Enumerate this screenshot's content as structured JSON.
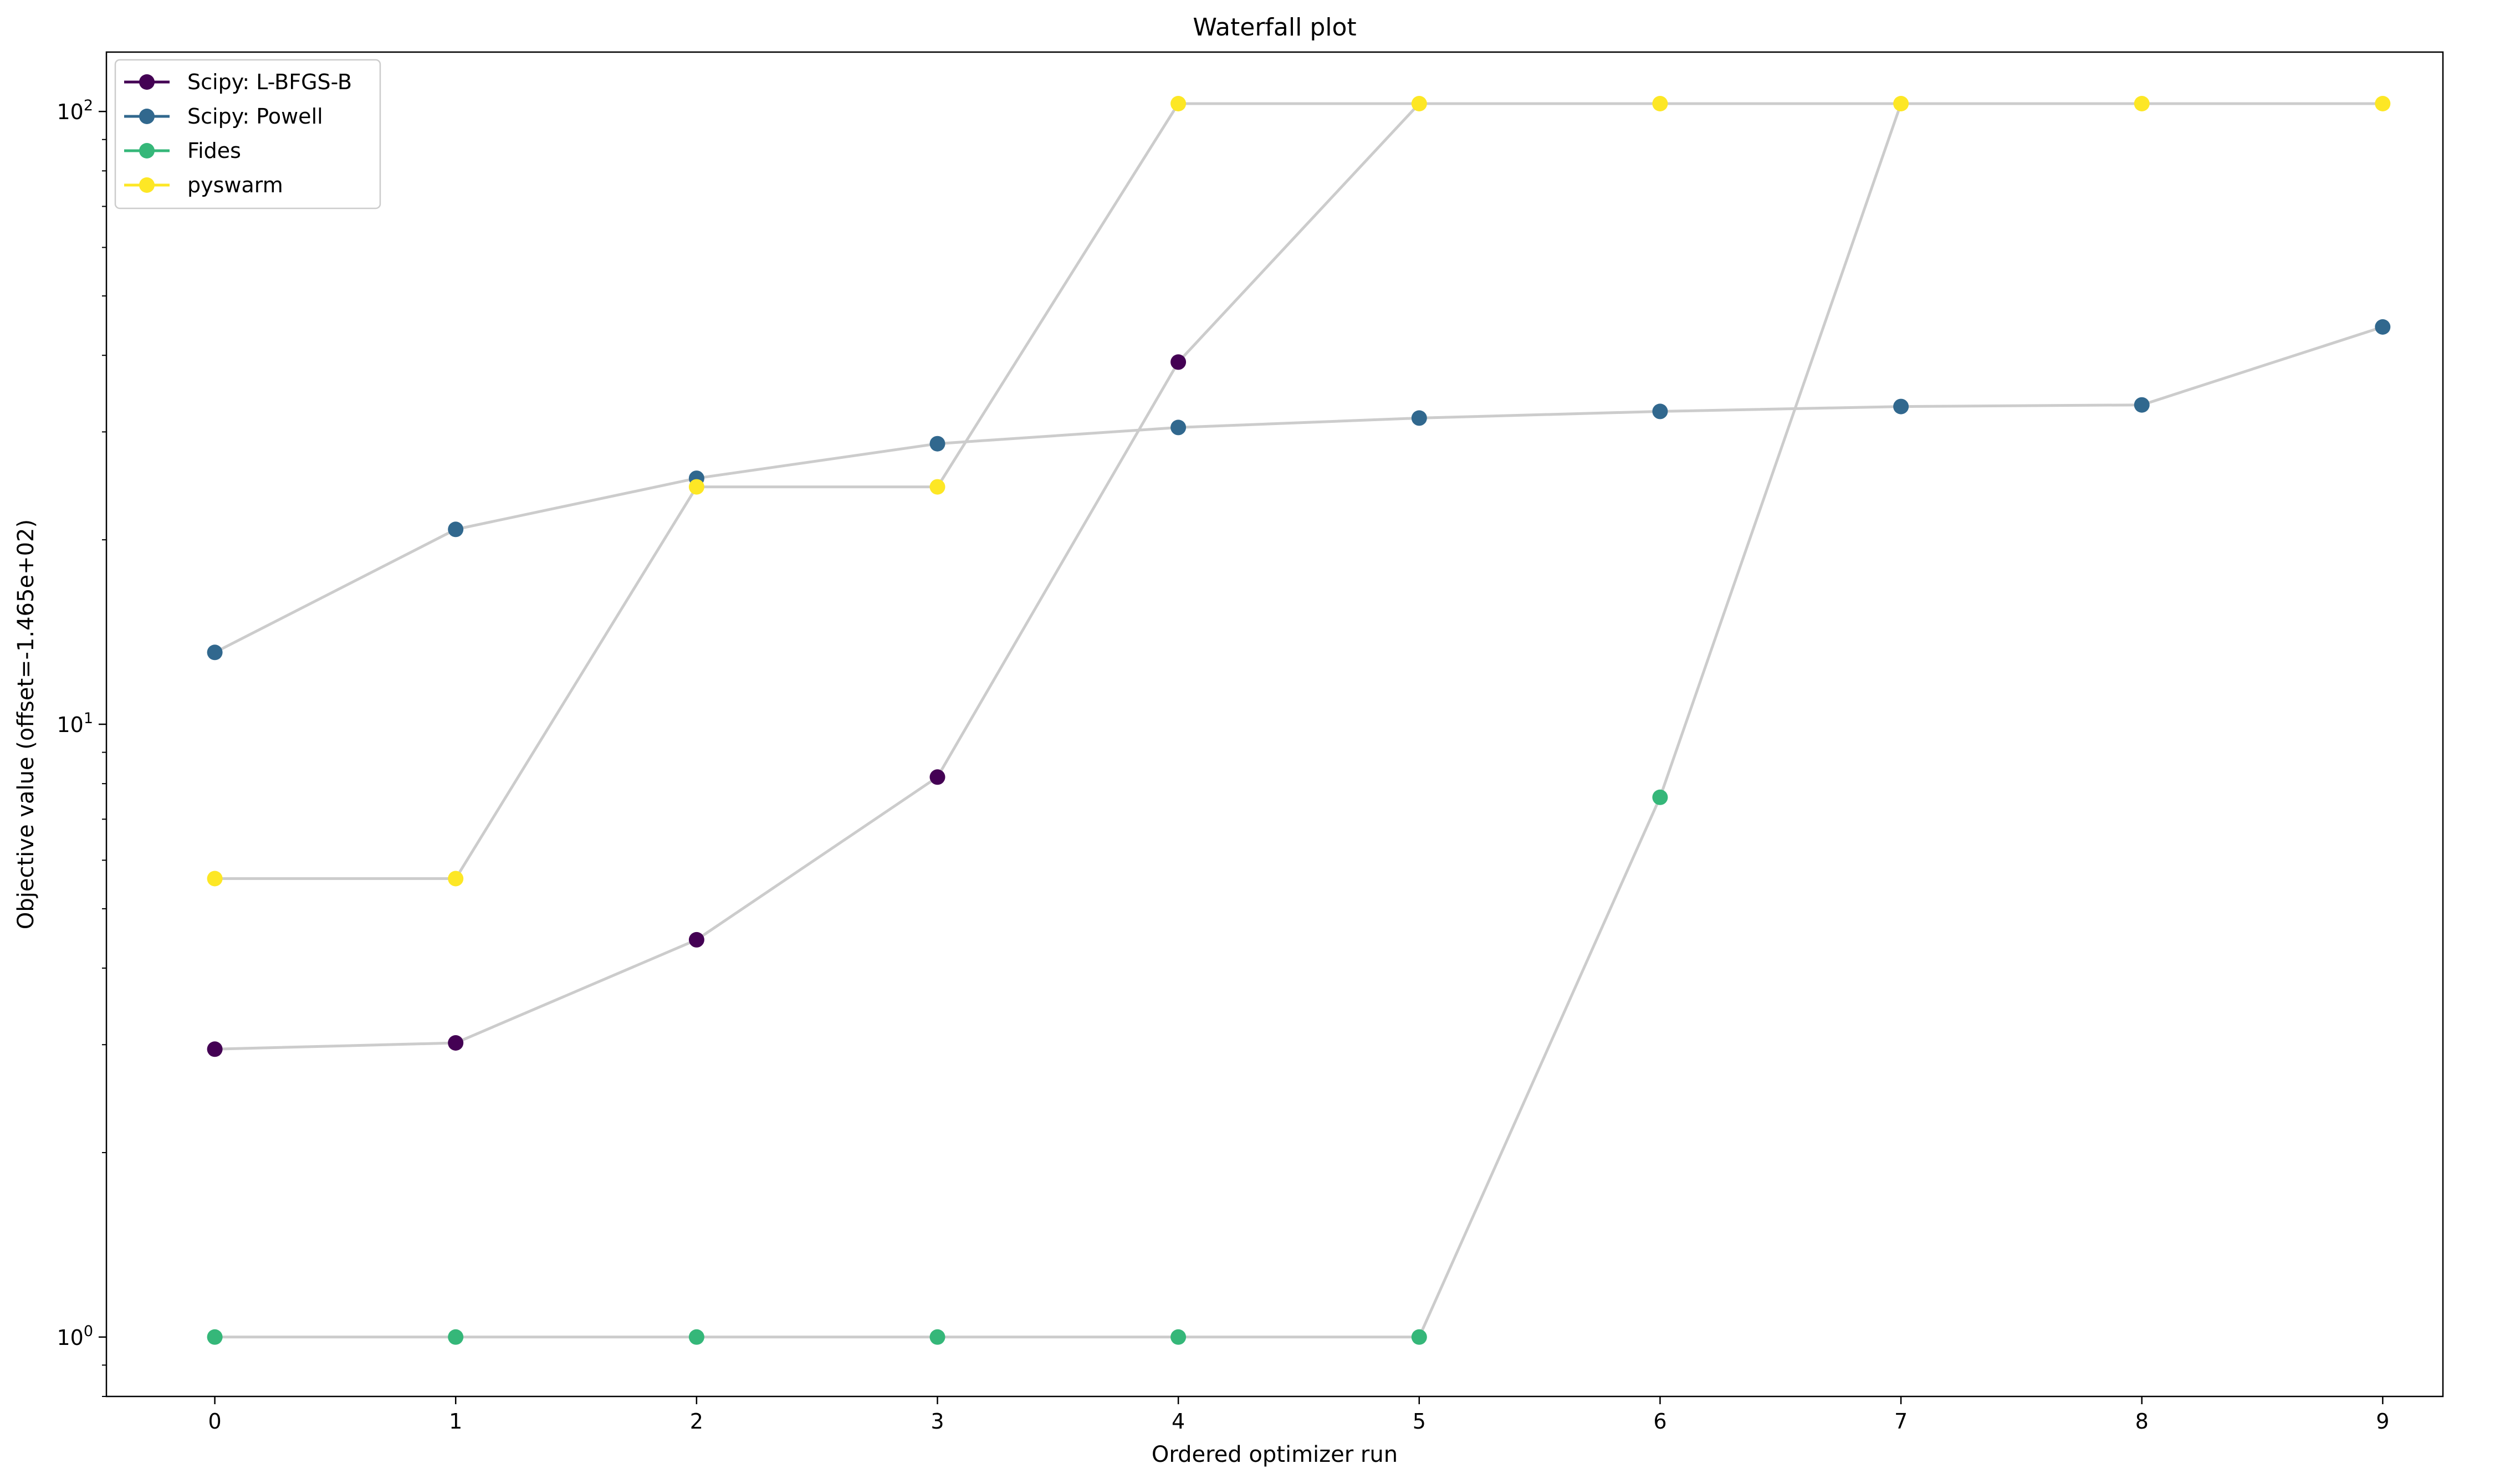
{
  "chart_data": {
    "type": "line",
    "title": "Waterfall plot",
    "xlabel": "Ordered optimizer run",
    "ylabel": "Objective value (offset=-1.465e+02)",
    "yscale": "log",
    "xlim": [
      -0.45,
      9.25
    ],
    "ylim": [
      0.8,
      125
    ],
    "x": [
      0,
      1,
      2,
      3,
      4,
      5,
      6,
      7,
      8,
      9
    ],
    "x_ticks": [
      "0",
      "1",
      "2",
      "3",
      "4",
      "5",
      "6",
      "7",
      "8",
      "9"
    ],
    "y_ticks": [
      {
        "value": 1,
        "base": "10",
        "exp": "0"
      },
      {
        "value": 10,
        "base": "10",
        "exp": "1"
      },
      {
        "value": 100,
        "base": "10",
        "exp": "2"
      }
    ],
    "legend_position": "top-left",
    "line_color": "#cccccc",
    "series": [
      {
        "name": "Scipy: L-BFGS-B",
        "color": "#440154",
        "values": [
          2.95,
          3.02,
          4.45,
          8.2,
          39.0,
          103,
          103,
          103,
          103,
          103
        ],
        "marker_from": 0,
        "marker_to": 4
      },
      {
        "name": "Scipy: Powell",
        "color": "#31688e",
        "values": [
          13.1,
          20.8,
          25.2,
          28.7,
          30.5,
          31.6,
          32.4,
          33.0,
          33.2,
          44.5
        ],
        "marker_from": 0,
        "marker_to": 9
      },
      {
        "name": "Fides",
        "color": "#35b779",
        "values": [
          1.0,
          1.0,
          1.0,
          1.0,
          1.0,
          1.0,
          7.6,
          103,
          103,
          103
        ],
        "marker_from": 0,
        "marker_to": 6
      },
      {
        "name": "pyswarm",
        "color": "#fde725",
        "values": [
          5.6,
          5.6,
          24.4,
          24.4,
          103,
          103,
          103,
          103,
          103,
          103
        ],
        "marker_from": 0,
        "marker_to": 9
      }
    ]
  }
}
